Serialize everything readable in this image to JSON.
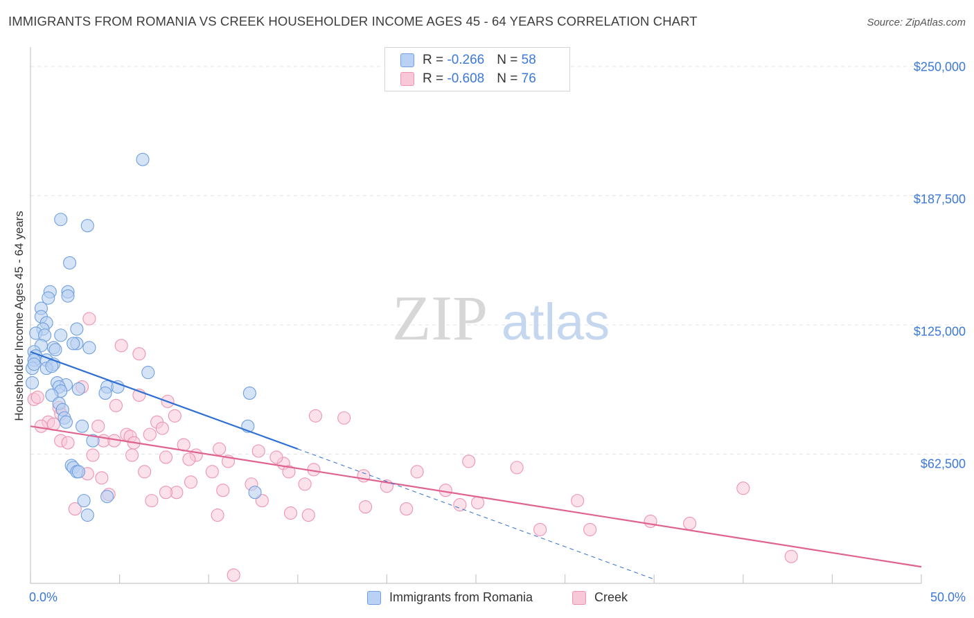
{
  "header": {
    "title": "IMMIGRANTS FROM ROMANIA VS CREEK HOUSEHOLDER INCOME AGES 45 - 64 YEARS CORRELATION CHART",
    "source": "Source: ZipAtlas.com"
  },
  "watermark": {
    "zip": "ZIP",
    "atlas": "atlas"
  },
  "legend": {
    "rows": [
      {
        "r_label": "R = ",
        "r_value": "-0.266",
        "n_label": "N = ",
        "n_value": "58"
      },
      {
        "r_label": "R = ",
        "r_value": "-0.608",
        "n_label": "N = ",
        "n_value": "76"
      }
    ]
  },
  "bottom_legend": {
    "series1": "Immigrants from Romania",
    "series2": "Creek"
  },
  "colors": {
    "series1_fill": "#b9d1f2",
    "series1_stroke": "#6f9fe0",
    "series1_line": "#2e6fd3",
    "series2_fill": "#f8c8d8",
    "series2_stroke": "#ee93b1",
    "series2_line": "#e0628e",
    "tick_text": "#3b78d8"
  },
  "chart_data": {
    "type": "scatter",
    "title": "IMMIGRANTS FROM ROMANIA VS CREEK HOUSEHOLDER INCOME AGES 45 - 64 YEARS CORRELATION CHART",
    "xlabel": "",
    "ylabel": "Householder Income Ages 45 - 64 years",
    "xlim": [
      0,
      50
    ],
    "ylim": [
      0,
      256000
    ],
    "x_tick_labels": [
      "0.0%",
      "50.0%"
    ],
    "y_ticks": [
      62500,
      125000,
      187500,
      250000
    ],
    "y_tick_labels": [
      "$62,500",
      "$125,000",
      "$187,500",
      "$250,000"
    ],
    "grid": true,
    "legend_position": "top-center",
    "series": [
      {
        "name": "Immigrants from Romania",
        "r": -0.266,
        "n": 58,
        "trend": {
          "x": [
            0,
            15
          ],
          "y": [
            112000,
            65000
          ]
        },
        "trend_extension": {
          "x": [
            15,
            35
          ],
          "y": [
            65000,
            2000
          ]
        },
        "points": [
          [
            6.3,
            205000
          ],
          [
            1.7,
            176000
          ],
          [
            3.2,
            173000
          ],
          [
            2.2,
            155000
          ],
          [
            1.1,
            141000
          ],
          [
            2.1,
            141000
          ],
          [
            1.0,
            138000
          ],
          [
            2.1,
            139000
          ],
          [
            0.6,
            133000
          ],
          [
            0.6,
            129000
          ],
          [
            0.9,
            126000
          ],
          [
            0.7,
            123000
          ],
          [
            2.6,
            123000
          ],
          [
            0.3,
            121000
          ],
          [
            0.8,
            120000
          ],
          [
            1.7,
            120000
          ],
          [
            0.6,
            115000
          ],
          [
            1.3,
            114000
          ],
          [
            1.4,
            113000
          ],
          [
            2.6,
            116000
          ],
          [
            2.4,
            116000
          ],
          [
            3.3,
            114000
          ],
          [
            0.2,
            112000
          ],
          [
            0.3,
            110000
          ],
          [
            0.2,
            108000
          ],
          [
            0.9,
            108000
          ],
          [
            1.3,
            106000
          ],
          [
            0.9,
            104000
          ],
          [
            1.2,
            105000
          ],
          [
            0.1,
            104000
          ],
          [
            6.6,
            102000
          ],
          [
            0.1,
            97000
          ],
          [
            1.5,
            97000
          ],
          [
            2.0,
            96000
          ],
          [
            4.3,
            95000
          ],
          [
            4.9,
            95000
          ],
          [
            1.6,
            95000
          ],
          [
            2.7,
            94000
          ],
          [
            1.7,
            93000
          ],
          [
            4.2,
            92000
          ],
          [
            1.2,
            91000
          ],
          [
            12.3,
            92000
          ],
          [
            1.6,
            87000
          ],
          [
            1.8,
            84000
          ],
          [
            1.9,
            80000
          ],
          [
            2.0,
            78000
          ],
          [
            2.9,
            76000
          ],
          [
            12.2,
            76000
          ],
          [
            3.5,
            69000
          ],
          [
            2.3,
            57000
          ],
          [
            2.4,
            56000
          ],
          [
            2.6,
            54000
          ],
          [
            2.7,
            54000
          ],
          [
            12.6,
            44000
          ],
          [
            4.3,
            42000
          ],
          [
            3.0,
            40000
          ],
          [
            3.2,
            33000
          ],
          [
            0.2,
            106000
          ]
        ]
      },
      {
        "name": "Creek",
        "r": -0.608,
        "n": 76,
        "trend": {
          "x": [
            0,
            50
          ],
          "y": [
            76000,
            8000
          ]
        },
        "points": [
          [
            3.3,
            128000
          ],
          [
            5.1,
            115000
          ],
          [
            6.1,
            111000
          ],
          [
            2.9,
            95000
          ],
          [
            6.1,
            91000
          ],
          [
            7.7,
            88000
          ],
          [
            4.8,
            86000
          ],
          [
            0.2,
            89000
          ],
          [
            0.4,
            90000
          ],
          [
            1.6,
            85000
          ],
          [
            1.7,
            82000
          ],
          [
            8.1,
            81000
          ],
          [
            16.0,
            81000
          ],
          [
            17.6,
            80000
          ],
          [
            7.1,
            78000
          ],
          [
            1.0,
            78000
          ],
          [
            1.3,
            77000
          ],
          [
            0.6,
            76000
          ],
          [
            3.8,
            76000
          ],
          [
            7.4,
            75000
          ],
          [
            5.4,
            72000
          ],
          [
            5.6,
            71000
          ],
          [
            6.7,
            72000
          ],
          [
            4.1,
            69000
          ],
          [
            4.7,
            69000
          ],
          [
            5.8,
            68000
          ],
          [
            1.7,
            69000
          ],
          [
            2.1,
            68000
          ],
          [
            8.6,
            67000
          ],
          [
            10.6,
            65000
          ],
          [
            12.8,
            64000
          ],
          [
            3.5,
            62000
          ],
          [
            5.7,
            62000
          ],
          [
            9.3,
            62000
          ],
          [
            8.9,
            60000
          ],
          [
            7.6,
            61000
          ],
          [
            11.1,
            59000
          ],
          [
            14.2,
            58000
          ],
          [
            13.8,
            61000
          ],
          [
            24.6,
            59000
          ],
          [
            27.3,
            56000
          ],
          [
            15.9,
            55000
          ],
          [
            14.5,
            54000
          ],
          [
            10.2,
            54000
          ],
          [
            6.4,
            54000
          ],
          [
            3.2,
            53000
          ],
          [
            21.7,
            54000
          ],
          [
            18.7,
            52000
          ],
          [
            4.0,
            51000
          ],
          [
            9.0,
            49000
          ],
          [
            12.4,
            48000
          ],
          [
            15.4,
            48000
          ],
          [
            20.0,
            47000
          ],
          [
            23.3,
            45000
          ],
          [
            40.0,
            46000
          ],
          [
            10.8,
            45000
          ],
          [
            8.2,
            44000
          ],
          [
            7.6,
            44000
          ],
          [
            4.4,
            43000
          ],
          [
            6.8,
            40000
          ],
          [
            13.0,
            40000
          ],
          [
            24.1,
            38000
          ],
          [
            25.1,
            39000
          ],
          [
            30.7,
            40000
          ],
          [
            18.8,
            37000
          ],
          [
            21.1,
            36000
          ],
          [
            14.6,
            34000
          ],
          [
            15.6,
            33000
          ],
          [
            10.5,
            33000
          ],
          [
            34.8,
            30000
          ],
          [
            28.6,
            26000
          ],
          [
            31.4,
            26000
          ],
          [
            37.0,
            29000
          ],
          [
            42.7,
            13000
          ],
          [
            11.4,
            4000
          ],
          [
            2.5,
            36000
          ]
        ]
      }
    ]
  }
}
